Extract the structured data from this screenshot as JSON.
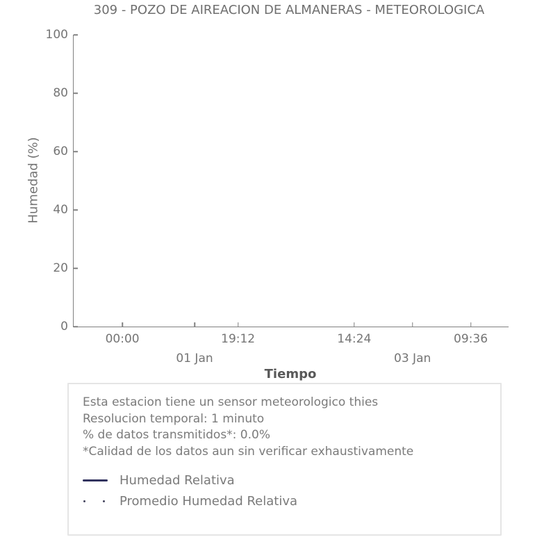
{
  "chart_data": {
    "type": "line",
    "title": "309 - POZO DE AIREACION DE ALMANERAS - METEOROLOGICA",
    "xlabel": "Tiempo",
    "ylabel": "Humedad (%)",
    "ylim": [
      0,
      100
    ],
    "yticks": [
      0,
      20,
      40,
      60,
      80,
      100
    ],
    "x_time_ticks": [
      {
        "label": "00:00",
        "pos_pct": 11.2
      },
      {
        "label": "19:12",
        "pos_pct": 37.8
      },
      {
        "label": "14:24",
        "pos_pct": 64.5
      },
      {
        "label": "09:36",
        "pos_pct": 91.3
      }
    ],
    "x_day_ticks": [
      {
        "label": "01 Jan",
        "pos_pct": 27.8
      },
      {
        "label": "03 Jan",
        "pos_pct": 77.9
      }
    ],
    "grid": false,
    "legend_position": "below-plot",
    "series": [
      {
        "name": "Humedad Relativa",
        "line_style": "solid",
        "color": "#32335f",
        "values": []
      },
      {
        "name": "Promedio Humedad Relativa",
        "line_style": "dotted",
        "color": "#46465f",
        "values": []
      }
    ]
  },
  "legend_info": {
    "lines": [
      "Esta estacion tiene un sensor meteorologico thies",
      "Resolucion temporal: 1 minuto",
      "% de datos transmitidos*: 0.0%",
      "*Calidad de los datos aun sin verificar exhaustivamente"
    ]
  },
  "colors": {
    "axis": "#808080",
    "tick_text": "#757575",
    "title_text": "#6f6f6f",
    "xlabel_text": "#595959",
    "legend_border": "#e5e5e5",
    "background": "#ffffff"
  }
}
